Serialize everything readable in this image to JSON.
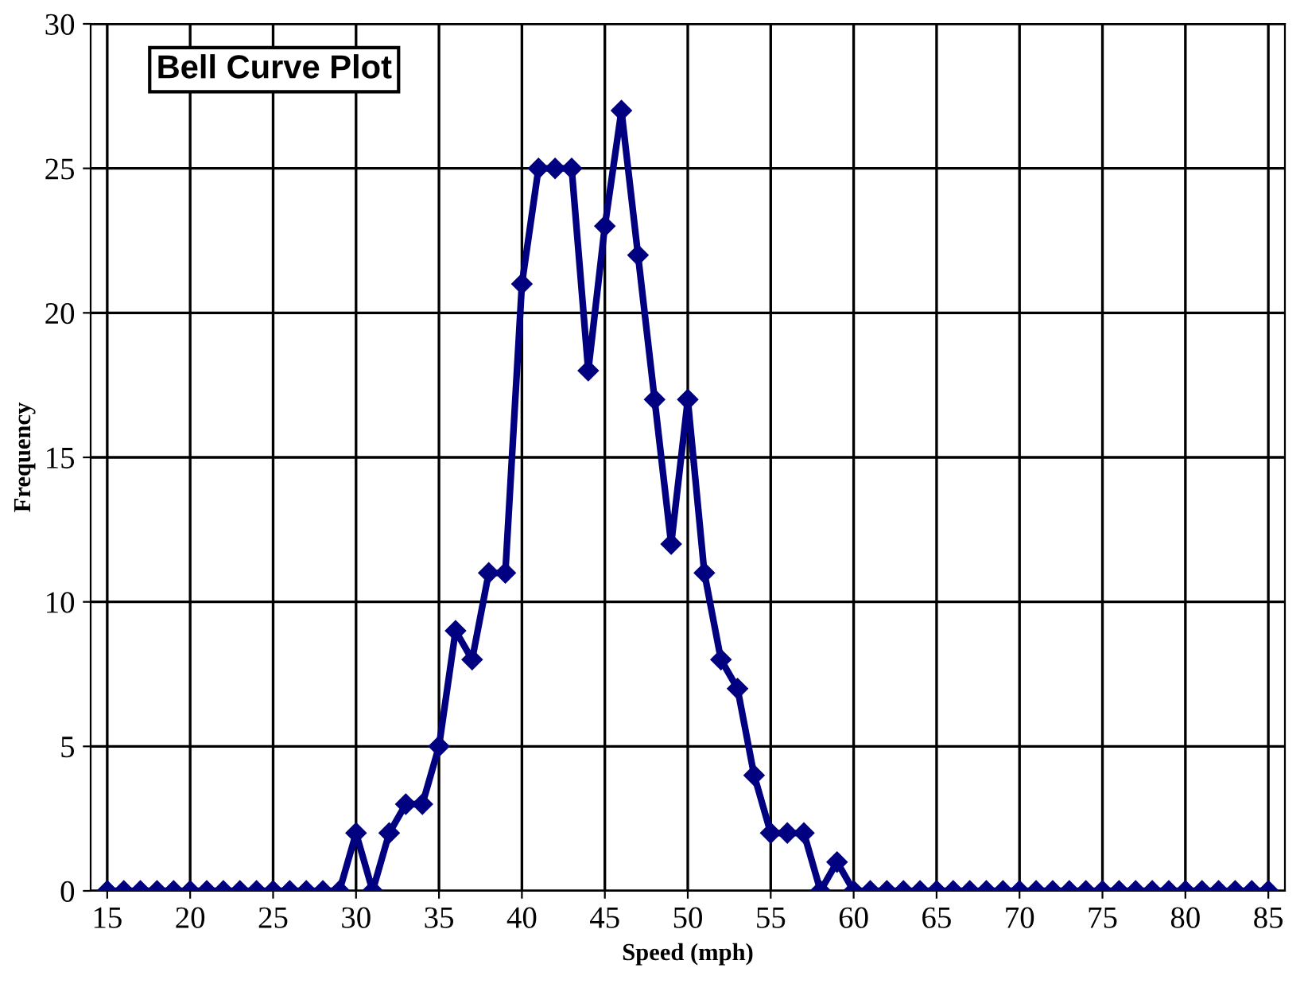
{
  "chart_data": {
    "type": "line",
    "title": "Bell Curve Plot",
    "xlabel": "Speed (mph)",
    "ylabel": "Frequency",
    "x": [
      15,
      16,
      17,
      18,
      19,
      20,
      21,
      22,
      23,
      24,
      25,
      26,
      27,
      28,
      29,
      30,
      31,
      32,
      33,
      34,
      35,
      36,
      37,
      38,
      39,
      40,
      41,
      42,
      43,
      44,
      45,
      46,
      47,
      48,
      49,
      50,
      51,
      52,
      53,
      54,
      55,
      56,
      57,
      58,
      59,
      60,
      61,
      62,
      63,
      64,
      65,
      66,
      67,
      68,
      69,
      70,
      71,
      72,
      73,
      74,
      75,
      76,
      77,
      78,
      79,
      80,
      81,
      82,
      83,
      84,
      85
    ],
    "series": [
      {
        "color": "#000080",
        "values": [
          0,
          0,
          0,
          0,
          0,
          0,
          0,
          0,
          0,
          0,
          0,
          0,
          0,
          0,
          0,
          2,
          0,
          2,
          3,
          3,
          5,
          9,
          8,
          11,
          11,
          21,
          25,
          25,
          25,
          18,
          23,
          27,
          22,
          17,
          12,
          17,
          11,
          8,
          7,
          4,
          2,
          2,
          2,
          0,
          1,
          0,
          0,
          0,
          0,
          0,
          0,
          0,
          0,
          0,
          0,
          0,
          0,
          0,
          0,
          0,
          0,
          0,
          0,
          0,
          0,
          0,
          0,
          0,
          0,
          0,
          0
        ]
      }
    ],
    "xlim": [
      14,
      86
    ],
    "xticks": [
      15,
      20,
      25,
      30,
      35,
      40,
      45,
      50,
      55,
      60,
      65,
      70,
      75,
      80,
      85
    ],
    "ylim": [
      0,
      30
    ],
    "yticks": [
      0,
      5,
      10,
      15,
      20,
      25,
      30
    ],
    "grid": true,
    "marker": "diamond",
    "line_style": "solid",
    "legend": false
  }
}
